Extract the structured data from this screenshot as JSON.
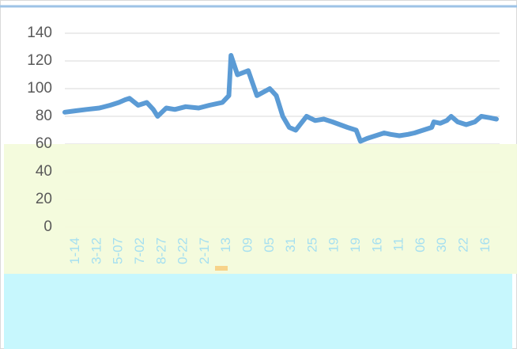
{
  "chart_data": {
    "type": "line",
    "x": [
      0,
      5,
      10,
      16,
      21,
      25,
      28,
      30,
      34,
      38,
      41,
      43,
      47,
      51,
      56,
      62,
      67,
      73,
      76,
      77,
      80,
      85,
      89,
      95,
      98,
      101,
      104,
      107,
      112,
      116,
      120,
      124,
      131,
      135,
      137,
      140,
      144,
      148,
      151,
      155,
      159,
      162,
      166,
      170,
      171,
      174,
      177,
      179,
      182,
      186,
      190,
      193,
      197,
      200
    ],
    "series": [
      {
        "color": "#5b9bd5",
        "values": [
          83,
          84,
          85,
          86,
          88,
          90,
          92,
          93,
          88,
          90,
          85,
          80,
          86,
          85,
          87,
          86,
          88,
          90,
          95,
          124,
          110,
          113,
          95,
          100,
          95,
          80,
          72,
          70,
          80,
          77,
          78,
          76,
          72,
          70,
          62,
          64,
          66,
          68,
          67,
          66,
          67,
          68,
          70,
          72,
          76,
          75,
          77,
          80,
          76,
          74,
          76,
          80,
          79,
          78
        ]
      }
    ],
    "xlim": [
      0,
      200
    ],
    "xticks": [
      {
        "value": 5,
        "label": "1-14"
      },
      {
        "value": 15,
        "label": "3-12"
      },
      {
        "value": 25,
        "label": "5-07"
      },
      {
        "value": 35,
        "label": "7-02"
      },
      {
        "value": 45,
        "label": "8-27"
      },
      {
        "value": 55,
        "label": "0-22"
      },
      {
        "value": 65,
        "label": "2-17"
      },
      {
        "value": 75,
        "label": "13"
      },
      {
        "value": 85,
        "label": "09"
      },
      {
        "value": 95,
        "label": "05"
      },
      {
        "value": 105,
        "label": "31"
      },
      {
        "value": 115,
        "label": "25"
      },
      {
        "value": 125,
        "label": "19"
      },
      {
        "value": 135,
        "label": "19"
      },
      {
        "value": 145,
        "label": "16"
      },
      {
        "value": 155,
        "label": "11"
      },
      {
        "value": 165,
        "label": "06"
      },
      {
        "value": 175,
        "label": "30"
      },
      {
        "value": 185,
        "label": "22"
      },
      {
        "value": 195,
        "label": "16"
      }
    ],
    "ylim": [
      0,
      140
    ],
    "yticks": [
      0,
      20,
      40,
      60,
      80,
      100,
      120,
      140
    ],
    "grid": true
  }
}
